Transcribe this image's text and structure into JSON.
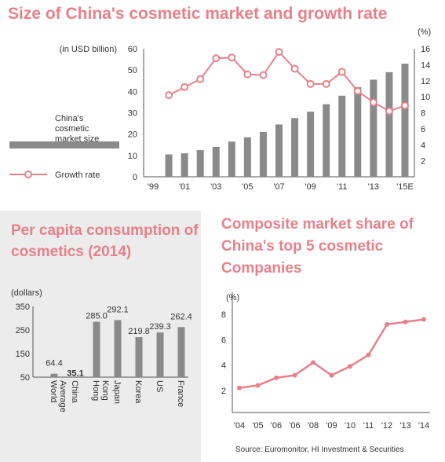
{
  "source": "Source: Euromonitor, HI Investment & Securities",
  "chart_data": [
    {
      "type": "bar+line",
      "title": "Size of China's cosmetic market and growth rate",
      "ylabel_left": "(in USD billion)",
      "ylabel_right": "(%)",
      "ylim_left": [
        0,
        60
      ],
      "ylim_right": [
        0,
        16
      ],
      "yticks_left": [
        "0",
        "10",
        "20",
        "30",
        "40",
        "50",
        "60"
      ],
      "yticks_right": [
        "2",
        "4",
        "6",
        "8",
        "10",
        "12",
        "14",
        "16"
      ],
      "x_tick_labels": [
        "'99",
        "'01",
        "'03",
        "'05",
        "'07",
        "'09",
        "'11",
        "'13",
        "'15E"
      ],
      "legend_bar": "China's cosmetic market size",
      "legend_line": "Growth rate",
      "years": [
        2000,
        2001,
        2002,
        2003,
        2004,
        2005,
        2006,
        2007,
        2008,
        2009,
        2010,
        2011,
        2012,
        2013,
        2014,
        2015
      ],
      "market_size": [
        10.5,
        11.0,
        12.5,
        14.0,
        16.5,
        18.5,
        21.0,
        24.5,
        27.5,
        30.5,
        34.0,
        38.0,
        42.0,
        45.5,
        49.0,
        53.0
      ],
      "growth_rate": [
        10.2,
        11.2,
        12.2,
        14.8,
        14.9,
        12.8,
        12.7,
        15.6,
        13.5,
        11.6,
        11.6,
        13.1,
        10.7,
        9.3,
        8.2,
        8.9
      ]
    },
    {
      "type": "bar",
      "title": "Per capita consumption of cosmetics (2014)",
      "ylabel": "(dollars)",
      "ylim": [
        0,
        350
      ],
      "yticks": [
        "50",
        "150",
        "250",
        "350"
      ],
      "categories": [
        "World Average",
        "China",
        "Hong Kong",
        "Japan",
        "Korea",
        "US",
        "France"
      ],
      "values": [
        64.4,
        35.1,
        285.0,
        292.1,
        219.8,
        239.3,
        262.4
      ],
      "value_labels": [
        "64.4",
        "35.1",
        "285.0",
        "292.1",
        "219.8",
        "239.3",
        "262.4"
      ],
      "highlight_color": "#e8808a",
      "bar_color": "#8a8a8a"
    },
    {
      "type": "line",
      "title": "Composite market share of China's top 5 cosmetic Companies",
      "ylabel": "(%)",
      "ylim": [
        0,
        8
      ],
      "yticks": [
        "2",
        "4",
        "6",
        "8"
      ],
      "categories": [
        "'04",
        "'05",
        "'06",
        "'06",
        "'08",
        "'09",
        "'10",
        "'11",
        "'12",
        "'13",
        "'14"
      ],
      "values": [
        2.2,
        2.4,
        3.0,
        3.2,
        4.2,
        3.2,
        3.9,
        4.8,
        7.2,
        7.4,
        7.6
      ],
      "line_color": "#e8808a"
    }
  ]
}
